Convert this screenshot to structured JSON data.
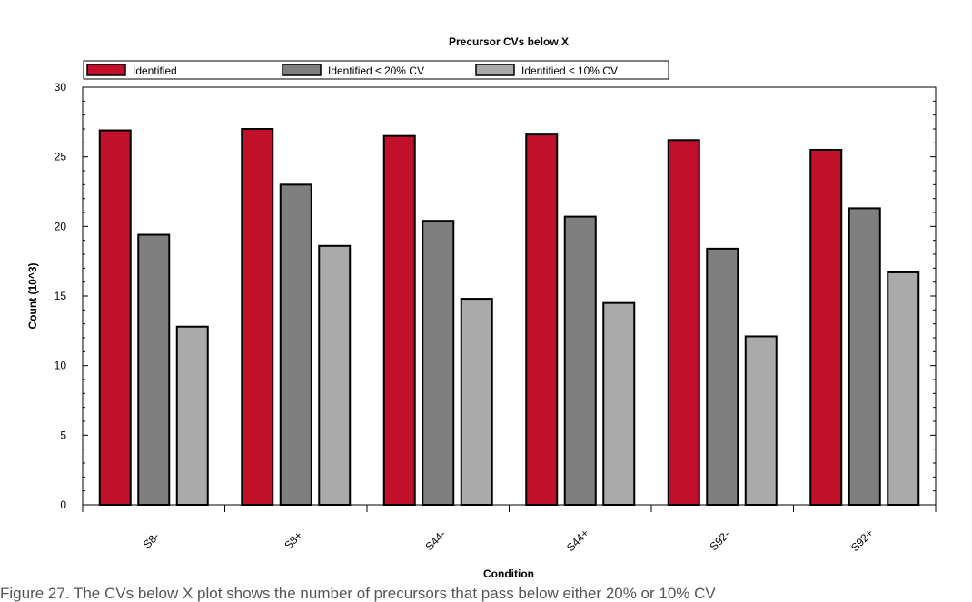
{
  "chart_data": {
    "type": "bar",
    "title": "Precursor CVs below X",
    "xlabel": "Condition",
    "ylabel": "Count (10^3)",
    "ylim": [
      0,
      30
    ],
    "yticks": [
      "0",
      "5",
      "10",
      "15",
      "20",
      "25",
      "30"
    ],
    "categories": [
      "S8-",
      "S8+",
      "S44-",
      "S44+",
      "S92-",
      "S92+"
    ],
    "legend_position": "top",
    "grid": false,
    "series": [
      {
        "name": "Identified",
        "color": "#c0102a",
        "values": [
          26.9,
          27.0,
          26.5,
          26.6,
          26.2,
          25.5
        ]
      },
      {
        "name": "Identified ≤ 20% CV",
        "color": "#7f7f7f",
        "values": [
          19.4,
          23.0,
          20.4,
          20.7,
          18.4,
          21.3
        ]
      },
      {
        "name": "Identified ≤ 10% CV",
        "color": "#aaaaaa",
        "values": [
          12.8,
          18.6,
          14.8,
          14.5,
          12.1,
          16.7
        ]
      }
    ]
  },
  "caption": "Figure 27. The CVs below X plot shows the number of precursors that pass below either 20% or 10% CV"
}
